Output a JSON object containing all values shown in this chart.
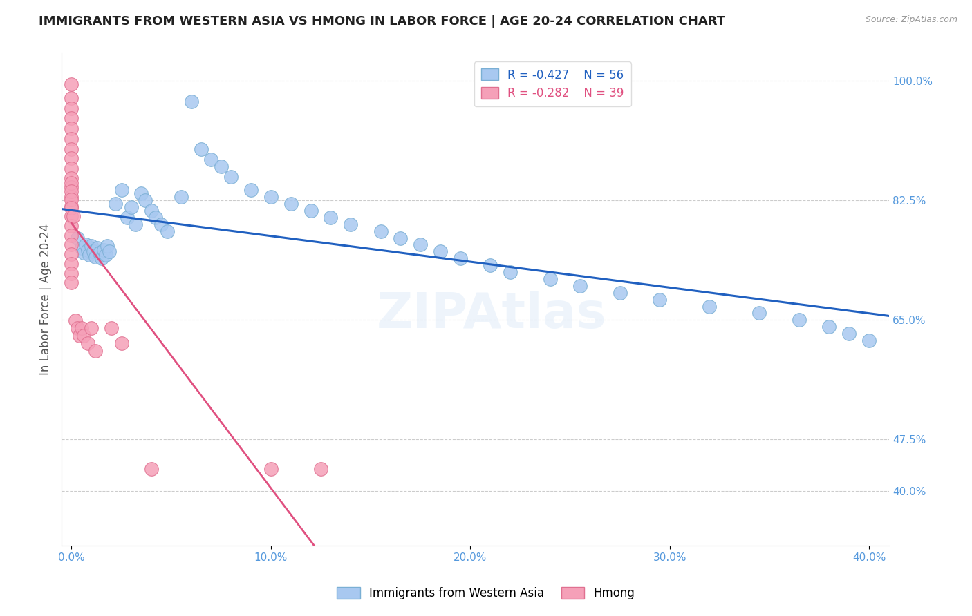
{
  "title": "IMMIGRANTS FROM WESTERN ASIA VS HMONG IN LABOR FORCE | AGE 20-24 CORRELATION CHART",
  "source": "Source: ZipAtlas.com",
  "ylabel": "In Labor Force | Age 20-24",
  "watermark": "ZIPAtlas",
  "blue_R": -0.427,
  "blue_N": 56,
  "pink_R": -0.282,
  "pink_N": 39,
  "blue_x": [
    0.003,
    0.005,
    0.006,
    0.007,
    0.008,
    0.009,
    0.01,
    0.011,
    0.012,
    0.013,
    0.014,
    0.015,
    0.016,
    0.017,
    0.018,
    0.019,
    0.022,
    0.025,
    0.028,
    0.03,
    0.032,
    0.035,
    0.037,
    0.04,
    0.042,
    0.045,
    0.048,
    0.055,
    0.06,
    0.065,
    0.07,
    0.075,
    0.08,
    0.09,
    0.1,
    0.11,
    0.12,
    0.13,
    0.14,
    0.155,
    0.165,
    0.175,
    0.185,
    0.195,
    0.21,
    0.22,
    0.24,
    0.255,
    0.275,
    0.295,
    0.32,
    0.345,
    0.365,
    0.38,
    0.39,
    0.4
  ],
  "blue_y": [
    0.77,
    0.755,
    0.748,
    0.76,
    0.752,
    0.745,
    0.758,
    0.75,
    0.742,
    0.755,
    0.748,
    0.74,
    0.752,
    0.745,
    0.758,
    0.75,
    0.82,
    0.84,
    0.8,
    0.815,
    0.79,
    0.835,
    0.825,
    0.81,
    0.8,
    0.79,
    0.78,
    0.83,
    0.97,
    0.9,
    0.885,
    0.875,
    0.86,
    0.84,
    0.83,
    0.82,
    0.81,
    0.8,
    0.79,
    0.78,
    0.77,
    0.76,
    0.75,
    0.74,
    0.73,
    0.72,
    0.71,
    0.7,
    0.69,
    0.68,
    0.67,
    0.66,
    0.65,
    0.64,
    0.63,
    0.62
  ],
  "pink_x": [
    0.0,
    0.0,
    0.0,
    0.0,
    0.0,
    0.0,
    0.0,
    0.0,
    0.0,
    0.0,
    0.0,
    0.0,
    0.0,
    0.0,
    0.0,
    0.0,
    0.0,
    0.0,
    0.0,
    0.0,
    0.0,
    0.0,
    0.0,
    0.0,
    0.0,
    0.001,
    0.002,
    0.003,
    0.004,
    0.005,
    0.006,
    0.008,
    0.01,
    0.012,
    0.02,
    0.025,
    0.04,
    0.1,
    0.125
  ],
  "pink_y": [
    0.995,
    0.975,
    0.96,
    0.945,
    0.93,
    0.915,
    0.9,
    0.887,
    0.872,
    0.858,
    0.844,
    0.83,
    0.816,
    0.802,
    0.788,
    0.774,
    0.76,
    0.746,
    0.732,
    0.718,
    0.705,
    0.85,
    0.838,
    0.826,
    0.814,
    0.802,
    0.649,
    0.638,
    0.627,
    0.638,
    0.627,
    0.616,
    0.638,
    0.605,
    0.638,
    0.616,
    0.432,
    0.432,
    0.432
  ],
  "blue_color": "#a8c8f0",
  "blue_edge": "#7aafd4",
  "pink_color": "#f5a0b8",
  "pink_edge": "#e07090",
  "blue_line_color": "#2060c0",
  "pink_line_color": "#e05080",
  "grid_color": "#cccccc",
  "right_axis_color": "#5599dd",
  "title_color": "#222222",
  "background_color": "#ffffff",
  "xlim": [
    -0.005,
    0.41
  ],
  "ylim": [
    0.32,
    1.04
  ],
  "xticks": [
    0.0,
    0.1,
    0.2,
    0.3,
    0.4
  ],
  "xtick_labels": [
    "0.0%",
    "10.0%",
    "20.0%",
    "30.0%",
    "40.0%"
  ],
  "right_yticks": [
    0.4,
    0.475,
    0.65,
    0.825,
    1.0
  ],
  "right_ytick_labels": [
    "40.0%",
    "47.5%",
    "65.0%",
    "82.5%",
    "100.0%"
  ]
}
